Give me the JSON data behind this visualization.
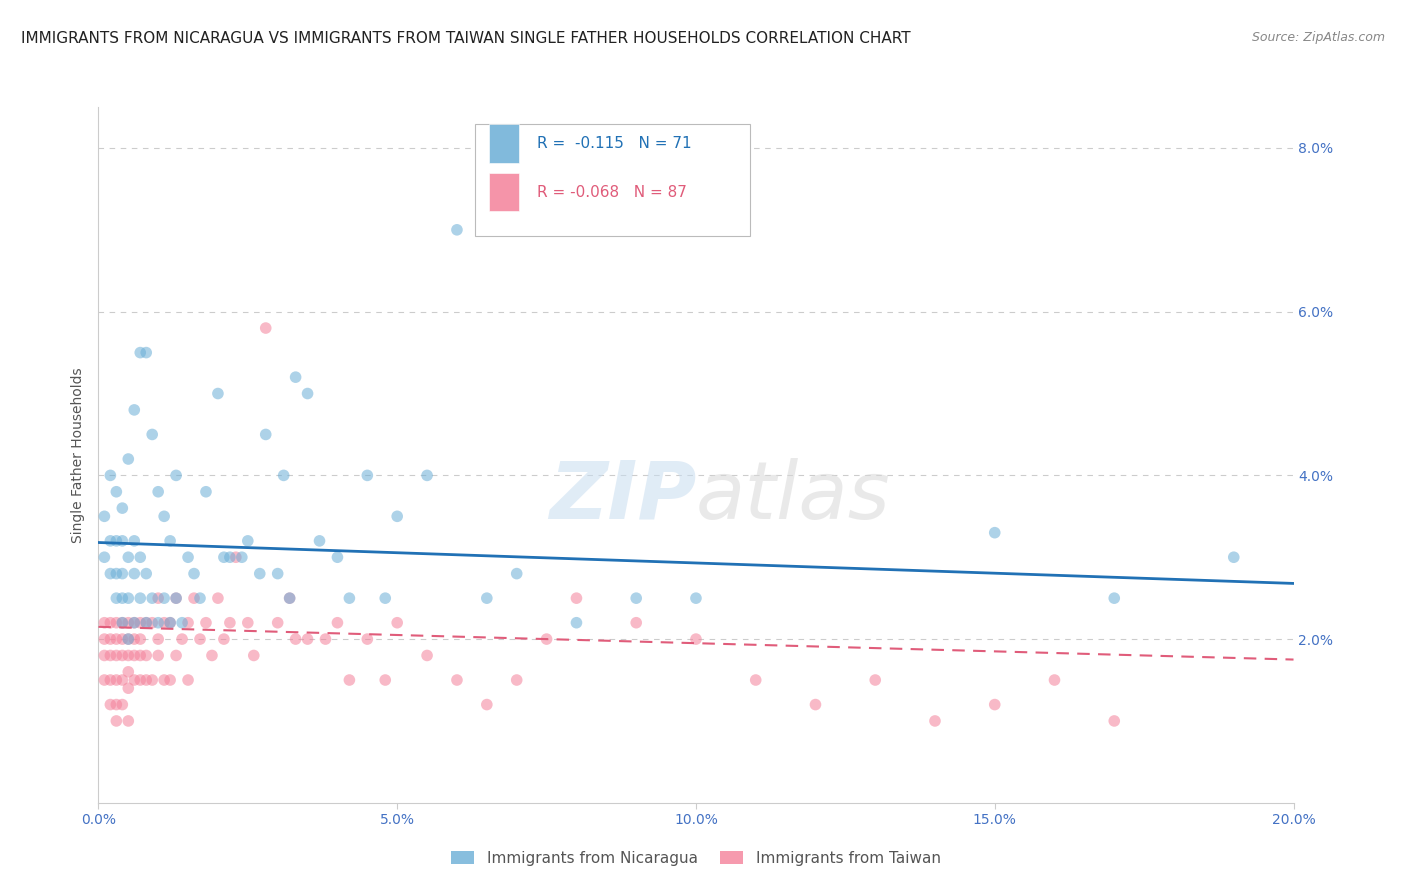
{
  "title": "IMMIGRANTS FROM NICARAGUA VS IMMIGRANTS FROM TAIWAN SINGLE FATHER HOUSEHOLDS CORRELATION CHART",
  "source": "Source: ZipAtlas.com",
  "ylabel": "Single Father Households",
  "xlim": [
    0.0,
    0.2
  ],
  "ylim": [
    0.0,
    0.085
  ],
  "xticks": [
    0.0,
    0.05,
    0.1,
    0.15,
    0.2
  ],
  "xtick_labels": [
    "0.0%",
    "5.0%",
    "10.0%",
    "15.0%",
    "20.0%"
  ],
  "yticks": [
    0.02,
    0.04,
    0.06,
    0.08
  ],
  "ytick_labels": [
    "2.0%",
    "4.0%",
    "6.0%",
    "8.0%"
  ],
  "blue_color": "#6baed6",
  "pink_color": "#f4819a",
  "blue_line_color": "#2171b5",
  "pink_line_color": "#e05c7a",
  "grid_color": "#cccccc",
  "background_color": "#ffffff",
  "watermark_zip": "ZIP",
  "watermark_atlas": "atlas",
  "legend_R_blue": "-0.115",
  "legend_N_blue": "71",
  "legend_R_pink": "-0.068",
  "legend_N_pink": "87",
  "legend_label_blue": "Immigrants from Nicaragua",
  "legend_label_pink": "Immigrants from Taiwan",
  "blue_scatter_x": [
    0.001,
    0.001,
    0.002,
    0.002,
    0.002,
    0.003,
    0.003,
    0.003,
    0.003,
    0.004,
    0.004,
    0.004,
    0.004,
    0.004,
    0.005,
    0.005,
    0.005,
    0.005,
    0.006,
    0.006,
    0.006,
    0.006,
    0.007,
    0.007,
    0.007,
    0.008,
    0.008,
    0.008,
    0.009,
    0.009,
    0.01,
    0.01,
    0.011,
    0.011,
    0.012,
    0.012,
    0.013,
    0.013,
    0.014,
    0.015,
    0.016,
    0.017,
    0.018,
    0.02,
    0.021,
    0.022,
    0.024,
    0.025,
    0.027,
    0.028,
    0.03,
    0.031,
    0.032,
    0.033,
    0.035,
    0.037,
    0.04,
    0.042,
    0.045,
    0.048,
    0.05,
    0.055,
    0.06,
    0.065,
    0.07,
    0.08,
    0.09,
    0.1,
    0.15,
    0.17,
    0.19
  ],
  "blue_scatter_y": [
    0.03,
    0.035,
    0.028,
    0.032,
    0.04,
    0.025,
    0.028,
    0.032,
    0.038,
    0.022,
    0.025,
    0.028,
    0.032,
    0.036,
    0.02,
    0.025,
    0.03,
    0.042,
    0.022,
    0.028,
    0.032,
    0.048,
    0.025,
    0.03,
    0.055,
    0.022,
    0.028,
    0.055,
    0.025,
    0.045,
    0.022,
    0.038,
    0.025,
    0.035,
    0.022,
    0.032,
    0.025,
    0.04,
    0.022,
    0.03,
    0.028,
    0.025,
    0.038,
    0.05,
    0.03,
    0.03,
    0.03,
    0.032,
    0.028,
    0.045,
    0.028,
    0.04,
    0.025,
    0.052,
    0.05,
    0.032,
    0.03,
    0.025,
    0.04,
    0.025,
    0.035,
    0.04,
    0.07,
    0.025,
    0.028,
    0.022,
    0.025,
    0.025,
    0.033,
    0.025,
    0.03
  ],
  "pink_scatter_x": [
    0.001,
    0.001,
    0.001,
    0.001,
    0.002,
    0.002,
    0.002,
    0.002,
    0.002,
    0.003,
    0.003,
    0.003,
    0.003,
    0.003,
    0.003,
    0.004,
    0.004,
    0.004,
    0.004,
    0.004,
    0.005,
    0.005,
    0.005,
    0.005,
    0.005,
    0.005,
    0.006,
    0.006,
    0.006,
    0.006,
    0.007,
    0.007,
    0.007,
    0.007,
    0.008,
    0.008,
    0.008,
    0.009,
    0.009,
    0.01,
    0.01,
    0.01,
    0.011,
    0.011,
    0.012,
    0.012,
    0.013,
    0.013,
    0.014,
    0.015,
    0.015,
    0.016,
    0.017,
    0.018,
    0.019,
    0.02,
    0.021,
    0.022,
    0.023,
    0.025,
    0.026,
    0.028,
    0.03,
    0.032,
    0.033,
    0.035,
    0.038,
    0.04,
    0.042,
    0.045,
    0.048,
    0.05,
    0.055,
    0.06,
    0.065,
    0.07,
    0.075,
    0.08,
    0.09,
    0.1,
    0.11,
    0.12,
    0.13,
    0.14,
    0.15,
    0.16,
    0.17
  ],
  "pink_scatter_y": [
    0.022,
    0.02,
    0.018,
    0.015,
    0.022,
    0.02,
    0.018,
    0.015,
    0.012,
    0.022,
    0.02,
    0.018,
    0.015,
    0.012,
    0.01,
    0.022,
    0.02,
    0.018,
    0.015,
    0.012,
    0.022,
    0.02,
    0.018,
    0.016,
    0.014,
    0.01,
    0.022,
    0.02,
    0.018,
    0.015,
    0.022,
    0.02,
    0.018,
    0.015,
    0.022,
    0.018,
    0.015,
    0.022,
    0.015,
    0.025,
    0.02,
    0.018,
    0.022,
    0.015,
    0.022,
    0.015,
    0.025,
    0.018,
    0.02,
    0.022,
    0.015,
    0.025,
    0.02,
    0.022,
    0.018,
    0.025,
    0.02,
    0.022,
    0.03,
    0.022,
    0.018,
    0.058,
    0.022,
    0.025,
    0.02,
    0.02,
    0.02,
    0.022,
    0.015,
    0.02,
    0.015,
    0.022,
    0.018,
    0.015,
    0.012,
    0.015,
    0.02,
    0.025,
    0.022,
    0.02,
    0.015,
    0.012,
    0.015,
    0.01,
    0.012,
    0.015,
    0.01
  ],
  "blue_trend_y_start": 0.0318,
  "blue_trend_y_end": 0.0268,
  "pink_trend_y_start": 0.0215,
  "pink_trend_y_end": 0.0175,
  "title_fontsize": 11,
  "axis_label_fontsize": 10,
  "tick_fontsize": 10,
  "legend_fontsize": 11,
  "source_fontsize": 9,
  "marker_size": 70,
  "marker_alpha": 0.55,
  "tick_color": "#4472c4"
}
